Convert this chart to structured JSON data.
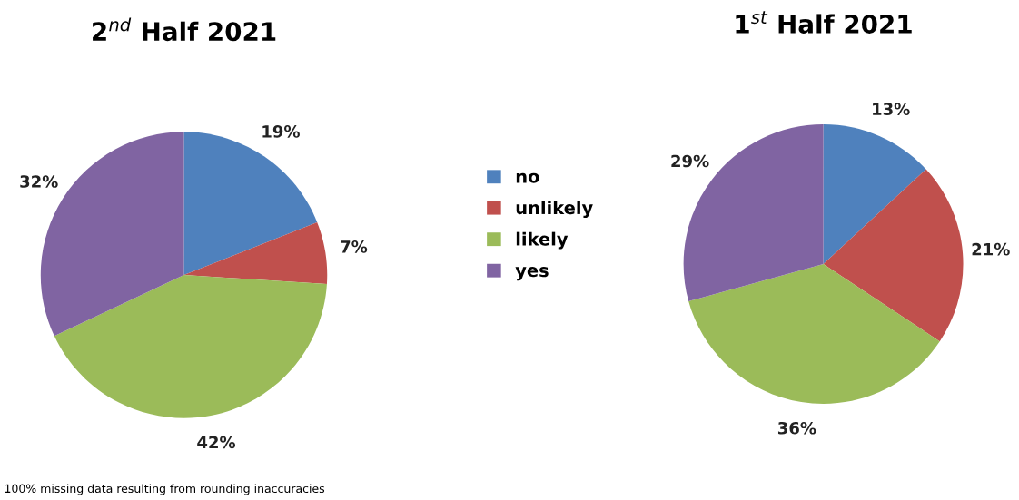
{
  "chart_data": [
    {
      "type": "pie",
      "title": "2$^{nd}$ Half 2021",
      "categories": [
        "no",
        "unlikely",
        "likely",
        "yes"
      ],
      "values": [
        19,
        7,
        42,
        32
      ],
      "value_labels": [
        "19%",
        "7%",
        "42%",
        "32%"
      ],
      "colors": [
        "#4f81bd",
        "#c0504d",
        "#9bbb59",
        "#8064a2"
      ],
      "legend": "right",
      "annotations": [
        "100% missing data resulting from rounding inaccuracies"
      ]
    },
    {
      "type": "pie",
      "title": "1$^{st}$ Half 2021",
      "categories": [
        null,
        null,
        null,
        null
      ],
      "values": [
        13,
        21,
        36,
        29
      ],
      "value_labels": [
        "13%",
        "21%",
        "36%",
        "29%"
      ],
      "colors": [
        "#4f81bd",
        "#c0504d",
        "#9bbb59",
        "#8064a2"
      ]
    }
  ]
}
